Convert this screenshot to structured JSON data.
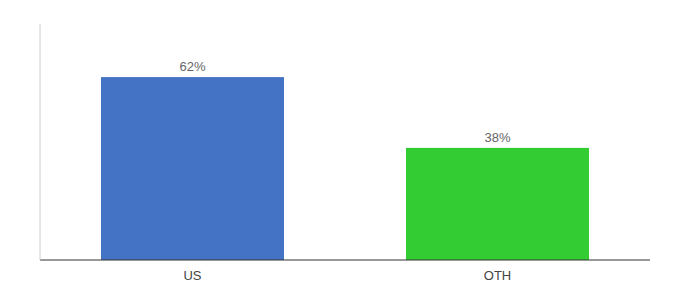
{
  "chart_data": {
    "type": "bar",
    "categories": [
      "US",
      "OTH"
    ],
    "values": [
      62,
      38
    ],
    "value_labels": [
      "62%",
      "38%"
    ],
    "colors": [
      "#4472C4",
      "#33CC33"
    ],
    "ylim": [
      0,
      80
    ],
    "data_labels": true,
    "tick_labels": "x",
    "grid": false
  }
}
